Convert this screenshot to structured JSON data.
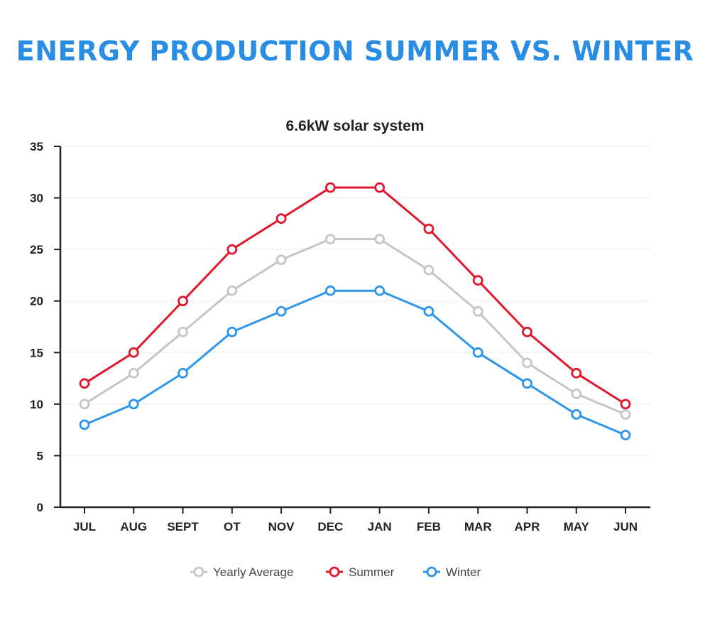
{
  "page_title": "ENERGY PRODUCTION SUMMER VS. WINTER",
  "colors": {
    "title": "#2a8de4",
    "summer": "#e0182d",
    "winter": "#2d96e8",
    "average": "#c6c6c6",
    "axis": "#222222"
  },
  "chart_data": {
    "type": "line",
    "title": "6.6kW solar system",
    "xlabel": "",
    "ylabel": "",
    "categories": [
      "JUL",
      "AUG",
      "SEPT",
      "OT",
      "NOV",
      "DEC",
      "JAN",
      "FEB",
      "MAR",
      "APR",
      "MAY",
      "JUN"
    ],
    "ylim": [
      0,
      35
    ],
    "yticks": [
      0,
      5,
      10,
      15,
      20,
      25,
      30,
      35
    ],
    "grid": true,
    "legend": "bottom",
    "series": [
      {
        "name": "Yearly Average",
        "color": "#c6c6c6",
        "values": [
          10,
          13,
          17,
          21,
          24,
          26,
          26,
          23,
          19,
          14,
          11,
          9
        ]
      },
      {
        "name": "Summer",
        "color": "#e0182d",
        "values": [
          12,
          15,
          20,
          25,
          28,
          31,
          31,
          27,
          22,
          17,
          13,
          10
        ]
      },
      {
        "name": "Winter",
        "color": "#2d96e8",
        "values": [
          8,
          10,
          13,
          17,
          19,
          21,
          21,
          19,
          15,
          12,
          9,
          7
        ]
      }
    ]
  }
}
